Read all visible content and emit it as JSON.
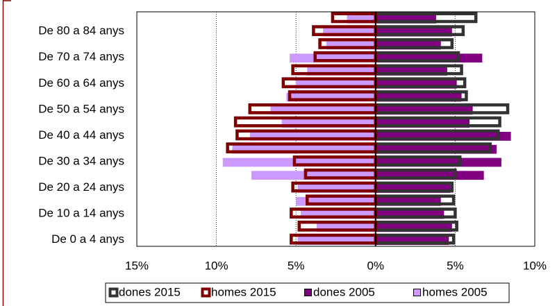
{
  "chart_data": {
    "type": "pyramid",
    "categories": [
      "De 0 a 4 anys",
      null,
      "De 10 a 14 anys",
      null,
      "De 20 a 24 anys",
      null,
      "De 30 a 34 anys",
      null,
      "De 40 a 44 anys",
      null,
      "De 50 a 54 anys",
      null,
      "De 60 a 64 anys",
      null,
      "De 70 a 74 anys",
      null,
      "De 80 a 84 anys",
      null
    ],
    "series": [
      {
        "name": "dones 2015",
        "color": "#333333",
        "outline": true,
        "values": [
          4.9,
          5.1,
          5.0,
          4.9,
          4.8,
          5.0,
          5.3,
          7.2,
          7.7,
          7.8,
          8.3,
          5.7,
          5.6,
          5.4,
          5.2,
          4.8,
          5.5,
          6.3
        ]
      },
      {
        "name": "homes 2015",
        "color": "#800000",
        "outline": true,
        "values": [
          -5.3,
          -4.8,
          -5.3,
          -4.3,
          -5.2,
          -4.4,
          -5.1,
          -9.3,
          -8.7,
          -8.8,
          -7.9,
          -5.4,
          -5.8,
          -5.2,
          -3.8,
          -3.5,
          -3.9,
          -2.7
        ]
      },
      {
        "name": "dones 2005",
        "color": "#800080",
        "outline": false,
        "values": [
          4.6,
          4.8,
          4.3,
          4.1,
          4.7,
          6.8,
          7.9,
          7.6,
          8.5,
          5.9,
          6.1,
          5.4,
          5.1,
          4.5,
          6.7,
          4.1,
          4.8,
          3.8
        ]
      },
      {
        "name": "homes 2005",
        "color": "#cc99ff",
        "outline": false,
        "values": [
          -4.9,
          -3.7,
          -4.7,
          -5.0,
          -4.9,
          -7.8,
          -9.6,
          -9.0,
          -7.9,
          -5.9,
          -6.6,
          -5.6,
          -5.0,
          -4.3,
          -5.4,
          -3.1,
          -3.3,
          -1.8
        ]
      }
    ],
    "xlim": [
      -15,
      10
    ],
    "xticks": [
      {
        "value": -15,
        "label": "15%"
      },
      {
        "value": -10,
        "label": "10%"
      },
      {
        "value": -5,
        "label": "5%"
      },
      {
        "value": 0,
        "label": "0%"
      },
      {
        "value": 5,
        "label": "5%"
      },
      {
        "value": 10,
        "label": "10%"
      }
    ],
    "grid": true
  }
}
